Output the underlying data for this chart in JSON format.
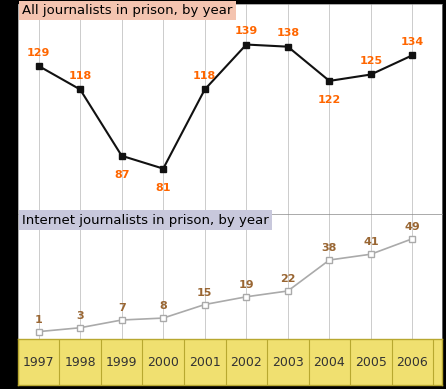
{
  "years": [
    1997,
    1998,
    1999,
    2000,
    2001,
    2002,
    2003,
    2004,
    2005,
    2006
  ],
  "all_journalists": [
    129,
    118,
    87,
    81,
    118,
    139,
    138,
    122,
    125,
    134
  ],
  "internet_journalists": [
    1,
    3,
    7,
    8,
    15,
    19,
    22,
    38,
    41,
    49
  ],
  "title_all": "All journalists in prison, by year",
  "title_internet": "Internet journalists in prison, by year",
  "label_color_all": "#FF6600",
  "label_color_internet": "#996633",
  "line_color_all": "#111111",
  "line_color_internet": "#AAAAAA",
  "bg_top": "#FFFFFF",
  "bg_bottom": "#FFFFFF",
  "title_bg_all": "#F4C4B0",
  "title_bg_internet": "#C8C8DC",
  "xticklabel_bg": "#F0E070",
  "xticklabel_edge": "#B8A830",
  "grid_color": "#CCCCCC",
  "outer_bg": "#000000"
}
